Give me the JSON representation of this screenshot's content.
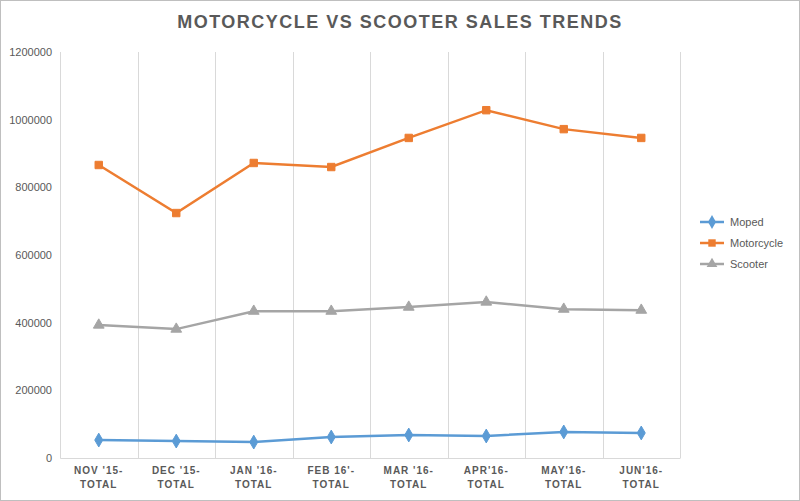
{
  "chart_data": {
    "type": "line",
    "title": "MOTORCYCLE VS SCOOTER SALES TRENDS",
    "categories": [
      "NOV '15-TOTAL",
      "DEC '15-TOTAL",
      "JAN '16-TOTAL",
      "FEB 16'-TOTAL",
      "MAR '16-TOTAL",
      "APR'16-TOTAL",
      "MAY'16-TOTAL",
      "JUN'16-TOTAL"
    ],
    "series": [
      {
        "name": "Moped",
        "color": "#5b9bd5",
        "marker": "diamond",
        "values": [
          53000,
          50000,
          47000,
          62000,
          68000,
          65000,
          77000,
          74000
        ]
      },
      {
        "name": "Motorcycle",
        "color": "#ed7d31",
        "marker": "square",
        "values": [
          866000,
          724000,
          872000,
          860000,
          946000,
          1028000,
          972000,
          946000
        ]
      },
      {
        "name": "Scooter",
        "color": "#a5a5a5",
        "marker": "triangle",
        "values": [
          393000,
          381000,
          434000,
          434000,
          446000,
          461000,
          440000,
          437000
        ]
      }
    ],
    "ylim": [
      0,
      1200000
    ],
    "yticks": [
      0,
      200000,
      400000,
      600000,
      800000,
      1000000,
      1200000
    ],
    "grid": true,
    "legend": "right"
  }
}
